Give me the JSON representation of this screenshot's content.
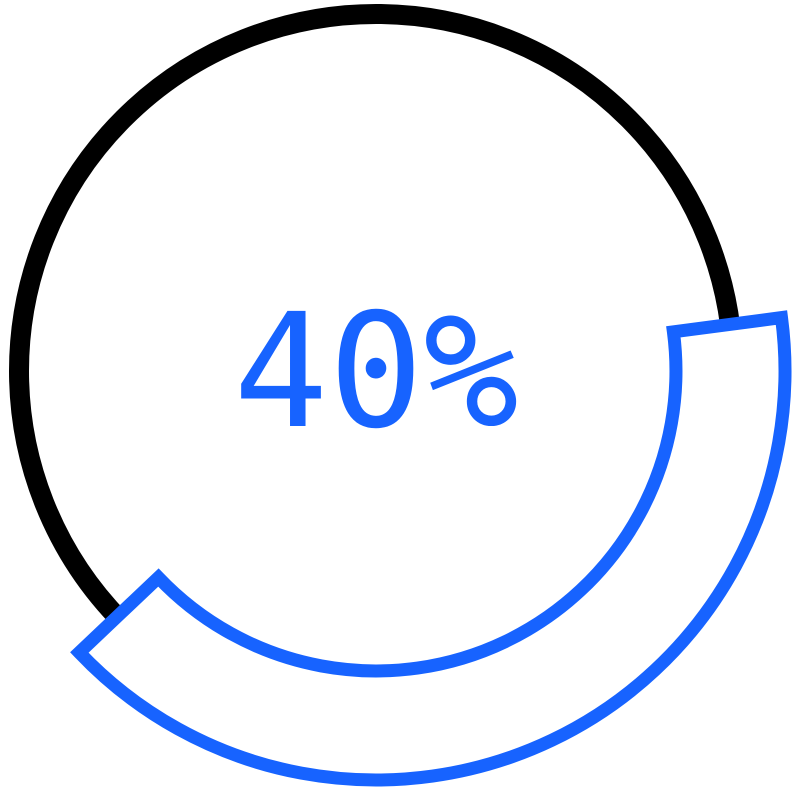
{
  "progress": {
    "value": 0.4,
    "label": "40%"
  },
  "colors": {
    "ring": "#000000",
    "accent": "#1763ff",
    "background": "#ffffff"
  }
}
